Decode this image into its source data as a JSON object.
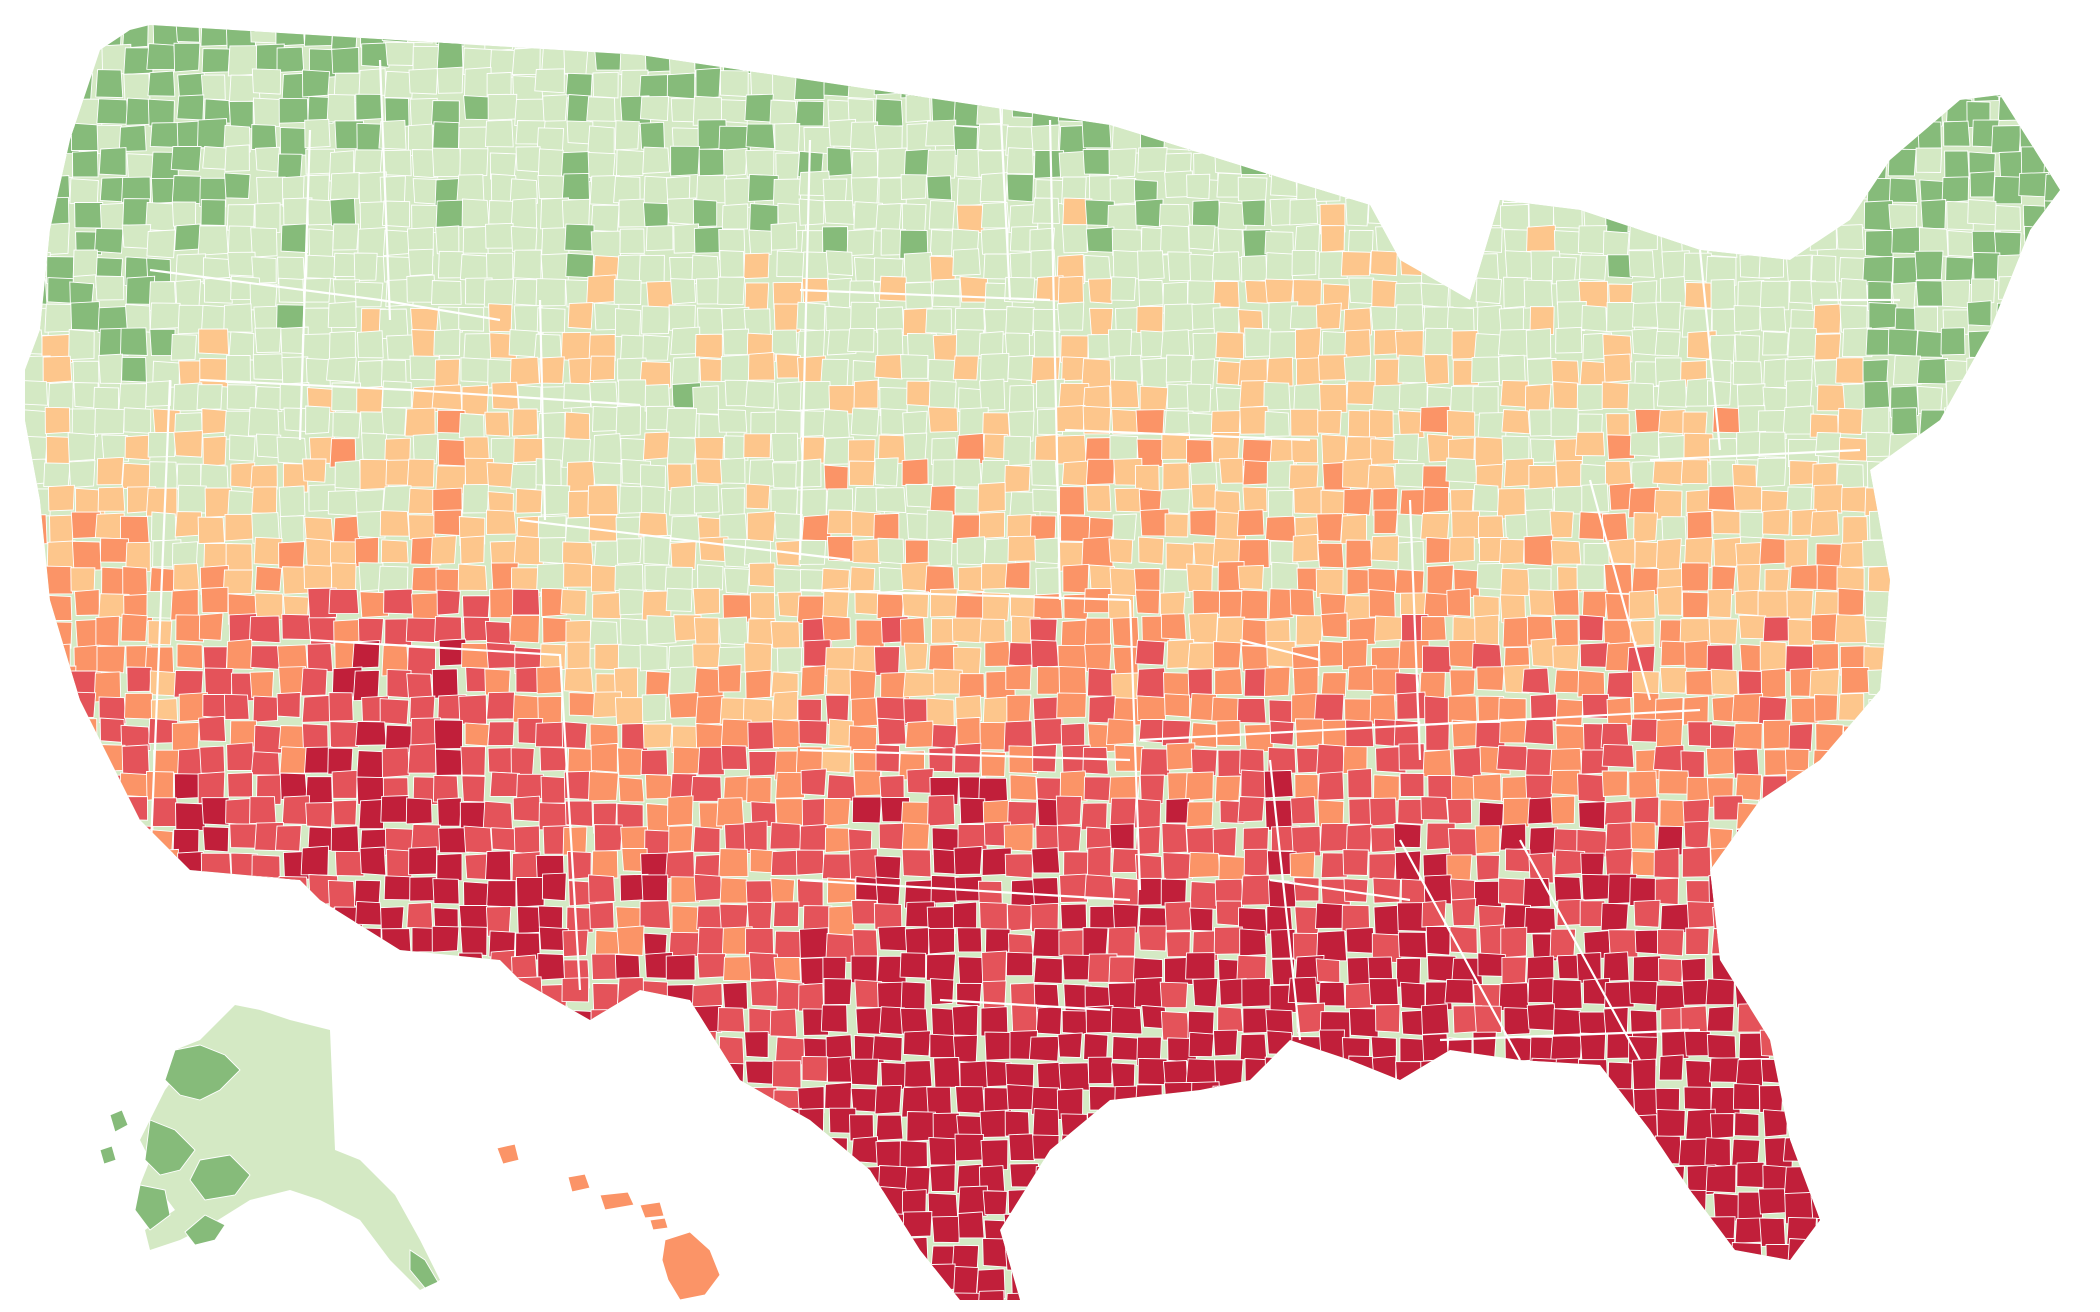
{
  "map": {
    "type": "choropleth",
    "subject": "counties",
    "regions": [
      "contiguous-us",
      "alaska",
      "hawaii"
    ],
    "palette": {
      "class_1": "#86bb7a",
      "class_2": "#d4e9c4",
      "class_3": "#fdc68c",
      "class_4": "#fb9467",
      "class_5": "#e4535a",
      "class_6": "#c11f3a"
    },
    "legend_visible": false,
    "title_visible": false,
    "borders": "white"
  }
}
